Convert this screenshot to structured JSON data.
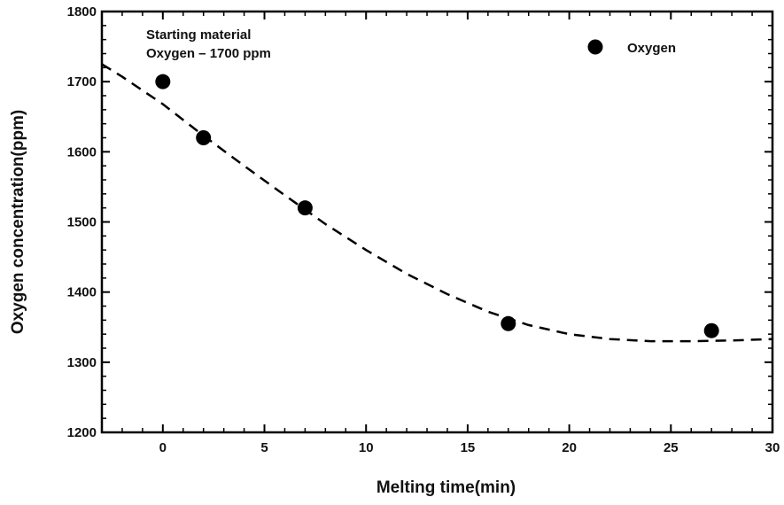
{
  "chart_data": {
    "type": "scatter",
    "title": "",
    "xlabel": "Melting time(min)",
    "ylabel": "Oxygen concentration(ppm)",
    "xlim": [
      -3,
      30
    ],
    "ylim": [
      1200,
      1800
    ],
    "x_ticks": [
      0,
      5,
      10,
      15,
      20,
      25,
      30
    ],
    "x_tick_labels": [
      "0",
      "5",
      "10",
      "15",
      "20",
      "25",
      "30"
    ],
    "y_ticks": [
      1200,
      1300,
      1400,
      1500,
      1600,
      1700,
      1800
    ],
    "y_tick_labels": [
      "1200",
      "1300",
      "1400",
      "1500",
      "1600",
      "1700",
      "1800"
    ],
    "grid": false,
    "legend_position": "top-right",
    "series": [
      {
        "name": "Oxygen",
        "color": "#000000",
        "marker": "filled-circle",
        "x": [
          0,
          2,
          7,
          17,
          27
        ],
        "y": [
          1700,
          1620,
          1520,
          1355,
          1345
        ]
      }
    ],
    "fit_curve": {
      "style": "dashed",
      "color": "#000000",
      "x": [
        -3,
        -2,
        0,
        2,
        4,
        6,
        8,
        10,
        12,
        14,
        16,
        18,
        20,
        22,
        24,
        25,
        26,
        28,
        30
      ],
      "y": [
        1725,
        1707,
        1668,
        1623,
        1580,
        1538,
        1497,
        1460,
        1426,
        1397,
        1372,
        1353,
        1340,
        1333,
        1330,
        1330,
        1330,
        1331,
        1333
      ]
    },
    "annotations": [
      {
        "text": "Starting material",
        "x": -2.5,
        "y": 1778
      },
      {
        "text": "Oxygen – 1700 ppm",
        "x": -2.5,
        "y": 1755
      }
    ]
  }
}
